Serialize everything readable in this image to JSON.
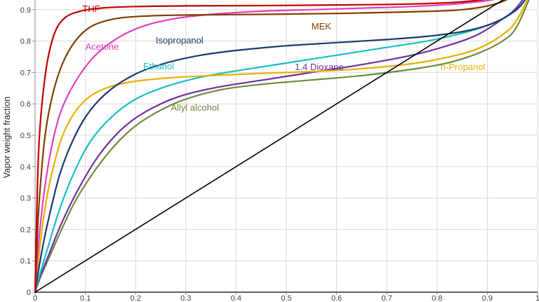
{
  "chart_data": {
    "type": "line",
    "title": "",
    "xlabel": "",
    "ylabel": "Vapor weight fraction",
    "xlim": [
      0,
      1
    ],
    "ylim": [
      0,
      0.93
    ],
    "grid": true,
    "grid_color": "#d9d9d9",
    "background": "#ffffff",
    "axis_color": "#8c8c8c",
    "x_tick_values": [
      0,
      0.1,
      0.2,
      0.3,
      0.4,
      0.5,
      0.6,
      0.7,
      0.8,
      0.9,
      1
    ],
    "x_tick_labels": [
      "0",
      "0.1",
      "0.2",
      "0.3",
      "0.4",
      "0.5",
      "0.6",
      "0.7",
      "0.8",
      "0.9",
      "1"
    ],
    "y_tick_values": [
      0,
      0.1,
      0.2,
      0.3,
      0.4,
      0.5,
      0.6,
      0.7,
      0.8,
      0.9
    ],
    "y_tick_labels": [
      "0",
      "0.1",
      "0.2",
      "0.3",
      "0.4",
      "0.5",
      "0.6",
      "0.7",
      "0.8",
      "0.9"
    ],
    "series": [
      {
        "name": "Allyl alcohol",
        "color": "#6e8b3d",
        "width": 2.2,
        "label_pos": [
          0.27,
          0.578
        ],
        "points": [
          [
            0,
            0
          ],
          [
            0.01,
            0.045
          ],
          [
            0.025,
            0.1
          ],
          [
            0.05,
            0.19
          ],
          [
            0.08,
            0.29
          ],
          [
            0.12,
            0.39
          ],
          [
            0.16,
            0.47
          ],
          [
            0.2,
            0.53
          ],
          [
            0.25,
            0.58
          ],
          [
            0.3,
            0.615
          ],
          [
            0.37,
            0.645
          ],
          [
            0.45,
            0.662
          ],
          [
            0.55,
            0.676
          ],
          [
            0.65,
            0.69
          ],
          [
            0.75,
            0.71
          ],
          [
            0.82,
            0.73
          ],
          [
            0.88,
            0.76
          ],
          [
            0.93,
            0.8
          ],
          [
            0.96,
            0.85
          ],
          [
            1,
            1
          ]
        ]
      },
      {
        "name": "1.4 Dioxane",
        "color": "#7030a0",
        "width": 2.2,
        "label_pos": [
          0.517,
          0.708
        ],
        "points": [
          [
            0,
            0
          ],
          [
            0.01,
            0.05
          ],
          [
            0.025,
            0.11
          ],
          [
            0.05,
            0.21
          ],
          [
            0.08,
            0.31
          ],
          [
            0.12,
            0.42
          ],
          [
            0.16,
            0.5
          ],
          [
            0.2,
            0.555
          ],
          [
            0.25,
            0.6
          ],
          [
            0.3,
            0.63
          ],
          [
            0.37,
            0.655
          ],
          [
            0.45,
            0.675
          ],
          [
            0.55,
            0.7
          ],
          [
            0.65,
            0.725
          ],
          [
            0.75,
            0.755
          ],
          [
            0.82,
            0.785
          ],
          [
            0.88,
            0.82
          ],
          [
            0.93,
            0.87
          ],
          [
            0.96,
            0.91
          ],
          [
            1,
            1
          ]
        ]
      },
      {
        "name": "Ethanol",
        "color": "#18c0c4",
        "width": 2.2,
        "label_pos": [
          0.215,
          0.71
        ],
        "points": [
          [
            0,
            0
          ],
          [
            0.01,
            0.06
          ],
          [
            0.025,
            0.14
          ],
          [
            0.05,
            0.27
          ],
          [
            0.08,
            0.39
          ],
          [
            0.11,
            0.48
          ],
          [
            0.15,
            0.555
          ],
          [
            0.2,
            0.615
          ],
          [
            0.26,
            0.655
          ],
          [
            0.33,
            0.685
          ],
          [
            0.4,
            0.705
          ],
          [
            0.5,
            0.73
          ],
          [
            0.6,
            0.755
          ],
          [
            0.7,
            0.78
          ],
          [
            0.78,
            0.8
          ],
          [
            0.85,
            0.825
          ],
          [
            0.9,
            0.85
          ],
          [
            0.94,
            0.88
          ],
          [
            0.97,
            0.92
          ],
          [
            1,
            1
          ]
        ]
      },
      {
        "name": "n-Propanol",
        "color": "#eab000",
        "width": 2.2,
        "label_pos": [
          0.807,
          0.708
        ],
        "points": [
          [
            0,
            0
          ],
          [
            0.005,
            0.08
          ],
          [
            0.01,
            0.15
          ],
          [
            0.02,
            0.27
          ],
          [
            0.035,
            0.39
          ],
          [
            0.055,
            0.5
          ],
          [
            0.08,
            0.575
          ],
          [
            0.11,
            0.625
          ],
          [
            0.15,
            0.655
          ],
          [
            0.2,
            0.672
          ],
          [
            0.27,
            0.683
          ],
          [
            0.35,
            0.69
          ],
          [
            0.45,
            0.697
          ],
          [
            0.55,
            0.703
          ],
          [
            0.65,
            0.712
          ],
          [
            0.75,
            0.728
          ],
          [
            0.82,
            0.748
          ],
          [
            0.88,
            0.775
          ],
          [
            0.93,
            0.82
          ],
          [
            0.96,
            0.87
          ],
          [
            1,
            1
          ]
        ]
      },
      {
        "name": "Isopropanol",
        "color": "#1b3a6b",
        "width": 2.2,
        "label_pos": [
          0.24,
          0.792
        ],
        "points": [
          [
            0,
            0
          ],
          [
            0.01,
            0.1
          ],
          [
            0.025,
            0.22
          ],
          [
            0.05,
            0.38
          ],
          [
            0.08,
            0.5
          ],
          [
            0.11,
            0.58
          ],
          [
            0.15,
            0.645
          ],
          [
            0.2,
            0.695
          ],
          [
            0.26,
            0.73
          ],
          [
            0.33,
            0.755
          ],
          [
            0.4,
            0.77
          ],
          [
            0.5,
            0.785
          ],
          [
            0.6,
            0.795
          ],
          [
            0.7,
            0.805
          ],
          [
            0.78,
            0.815
          ],
          [
            0.85,
            0.83
          ],
          [
            0.9,
            0.85
          ],
          [
            0.94,
            0.88
          ],
          [
            0.97,
            0.92
          ],
          [
            1,
            1
          ]
        ]
      },
      {
        "name": "Acetone",
        "color": "#e23ebe",
        "width": 2.2,
        "label_pos": [
          0.1,
          0.772
        ],
        "points": [
          [
            0,
            0
          ],
          [
            0.005,
            0.12
          ],
          [
            0.015,
            0.28
          ],
          [
            0.03,
            0.44
          ],
          [
            0.05,
            0.57
          ],
          [
            0.08,
            0.67
          ],
          [
            0.12,
            0.755
          ],
          [
            0.17,
            0.815
          ],
          [
            0.22,
            0.85
          ],
          [
            0.28,
            0.872
          ],
          [
            0.35,
            0.885
          ],
          [
            0.45,
            0.895
          ],
          [
            0.55,
            0.9
          ],
          [
            0.65,
            0.905
          ],
          [
            0.75,
            0.91
          ],
          [
            0.85,
            0.92
          ],
          [
            0.93,
            0.94
          ],
          [
            1,
            1
          ]
        ]
      },
      {
        "name": "MEK",
        "color": "#833c00",
        "width": 2.2,
        "label_pos": [
          0.55,
          0.837
        ],
        "points": [
          [
            0,
            0
          ],
          [
            0.005,
            0.2
          ],
          [
            0.01,
            0.33
          ],
          [
            0.02,
            0.5
          ],
          [
            0.035,
            0.63
          ],
          [
            0.055,
            0.73
          ],
          [
            0.08,
            0.8
          ],
          [
            0.11,
            0.845
          ],
          [
            0.15,
            0.868
          ],
          [
            0.2,
            0.878
          ],
          [
            0.3,
            0.883
          ],
          [
            0.45,
            0.885
          ],
          [
            0.6,
            0.888
          ],
          [
            0.75,
            0.893
          ],
          [
            0.85,
            0.9
          ],
          [
            0.92,
            0.92
          ],
          [
            0.97,
            0.96
          ],
          [
            1,
            1
          ]
        ]
      },
      {
        "name": "THF",
        "color": "#c00000",
        "width": 2.2,
        "label_pos": [
          0.094,
          0.893
        ],
        "points": [
          [
            0,
            0
          ],
          [
            0.004,
            0.3
          ],
          [
            0.008,
            0.48
          ],
          [
            0.015,
            0.62
          ],
          [
            0.025,
            0.74
          ],
          [
            0.04,
            0.83
          ],
          [
            0.06,
            0.875
          ],
          [
            0.09,
            0.895
          ],
          [
            0.13,
            0.905
          ],
          [
            0.2,
            0.91
          ],
          [
            0.3,
            0.912
          ],
          [
            0.45,
            0.913
          ],
          [
            0.6,
            0.915
          ],
          [
            0.75,
            0.918
          ],
          [
            0.85,
            0.925
          ],
          [
            0.92,
            0.94
          ],
          [
            0.97,
            0.97
          ],
          [
            1,
            1
          ]
        ]
      },
      {
        "name": "y = x reference",
        "color": "#000000",
        "width": 1.6,
        "label_pos": null,
        "points": [
          [
            0,
            0
          ],
          [
            1,
            1
          ]
        ]
      }
    ]
  }
}
